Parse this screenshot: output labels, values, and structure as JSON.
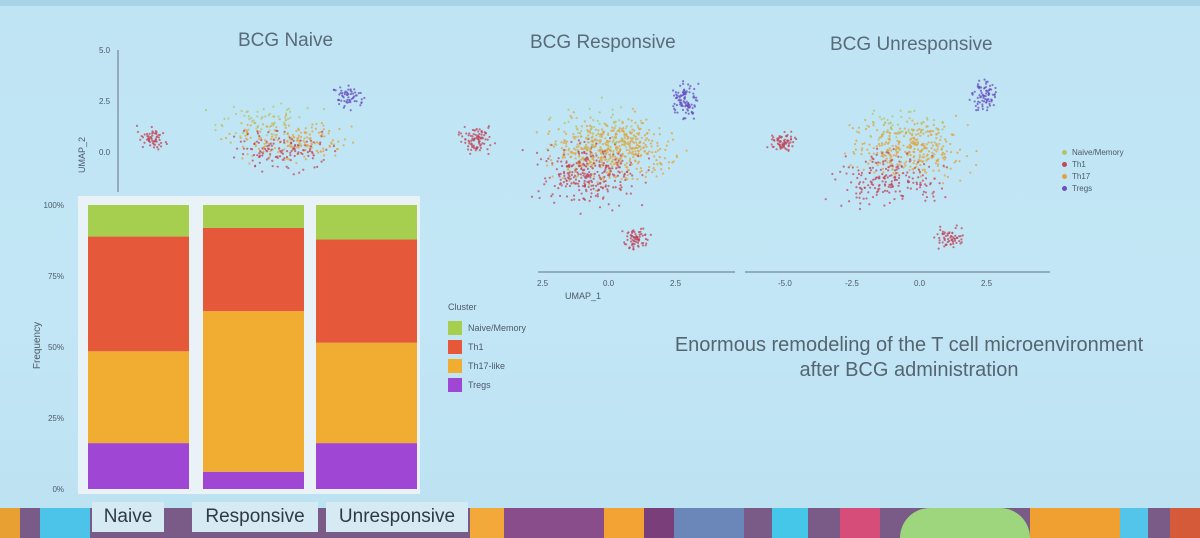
{
  "umap": {
    "titles": [
      "BCG Naive",
      "BCG Responsive",
      "BCG Unresponsive"
    ],
    "y_axis_label": "UMAP_2",
    "x_axis_label": "UMAP_1",
    "y_ticks": [
      "5.0",
      "2.5",
      "0.0"
    ],
    "x_ticks_panel2": [
      "2.5",
      "0.0",
      "2.5"
    ],
    "x_ticks_panel3": [
      "-5.0",
      "-2.5",
      "0.0",
      "2.5"
    ],
    "legend": [
      "Naive/Memory",
      "Th1",
      "Th17",
      "Tregs"
    ]
  },
  "message": {
    "line1": "Enormous remodeling of the T cell microenvironment",
    "line2": "after BCG administration"
  },
  "colors": {
    "naive_memory": "#a6cf4f",
    "th1": "#e5593a",
    "th17": "#f0ad32",
    "tregs": "#a046d4",
    "umap_naive": "#b3c46a",
    "umap_th1": "#c0465a",
    "umap_th17": "#e0a33e",
    "umap_tregs": "#6a4fc0"
  },
  "chart_data": {
    "type": "bar",
    "stacked": true,
    "categories": [
      "Naive",
      "Responsive",
      "Unresponsive"
    ],
    "ylabel": "Frequency",
    "y_ticks": [
      "100%",
      "75%",
      "50%",
      "25%",
      "0%"
    ],
    "ylim": [
      0,
      100
    ],
    "legend_title": "Cluster",
    "series": [
      {
        "name": "Tregs",
        "values": [
          16,
          6,
          16
        ]
      },
      {
        "name": "Th17-like",
        "values": [
          32,
          56,
          35
        ]
      },
      {
        "name": "Th1",
        "values": [
          40,
          29,
          36
        ]
      },
      {
        "name": "Naive/Memory",
        "values": [
          11,
          8,
          12
        ]
      }
    ]
  }
}
